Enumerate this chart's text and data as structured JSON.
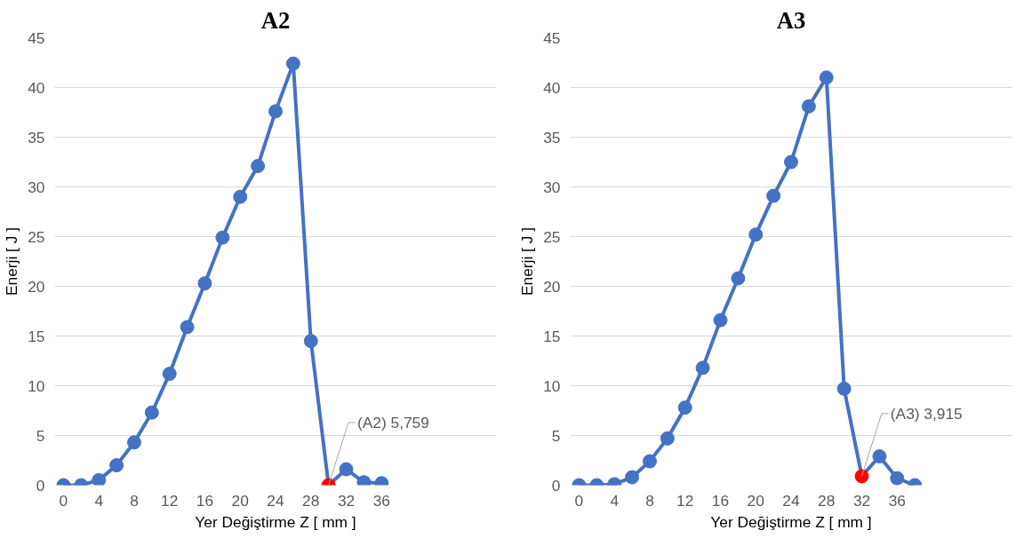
{
  "chart_data": [
    {
      "type": "line",
      "title": "A2",
      "xlabel": "Yer Değiştirme Z [ mm ]",
      "ylabel": "Enerji [ J ]",
      "x": [
        0,
        2,
        4,
        6,
        8,
        10,
        12,
        14,
        16,
        18,
        20,
        22,
        24,
        26,
        28,
        30,
        32,
        34,
        36
      ],
      "series": [
        {
          "color": "#4472c4",
          "colors": [
            "#4472c4",
            "#4472c4",
            "#4472c4",
            "#4472c4",
            "#4472c4",
            "#4472c4",
            "#4472c4",
            "#4472c4",
            "#4472c4",
            "#4472c4",
            "#4472c4",
            "#4472c4",
            "#4472c4",
            "#4472c4",
            "#4472c4",
            "#ff0000",
            "#4472c4",
            "#4472c4",
            "#4472c4"
          ],
          "values": [
            0,
            0,
            0.5,
            2.0,
            4.3,
            7.3,
            11.2,
            15.9,
            20.3,
            24.9,
            29.0,
            32.1,
            37.6,
            42.4,
            14.5,
            0,
            1.6,
            0.3,
            0.2
          ]
        }
      ],
      "xlim": [
        -1,
        49
      ],
      "xticks": [
        0,
        4,
        8,
        12,
        16,
        20,
        24,
        28,
        32,
        36
      ],
      "ylim": [
        0,
        45
      ],
      "yticks": [
        0,
        5,
        10,
        15,
        20,
        25,
        30,
        35,
        40,
        45
      ],
      "grid": "y",
      "marker": "circle",
      "line_style": "solid",
      "annotations": [
        {
          "text": "(A2) 5,759",
          "x": 30,
          "y": 0
        }
      ]
    },
    {
      "type": "line",
      "title": "A3",
      "xlabel": "Yer Değiştirme Z [ mm ]",
      "ylabel": "Enerji [ J ]",
      "x": [
        0,
        2,
        4,
        6,
        8,
        10,
        12,
        14,
        16,
        18,
        20,
        22,
        24,
        26,
        28,
        30,
        32,
        34,
        36,
        38
      ],
      "series": [
        {
          "color": "#4472c4",
          "colors": [
            "#4472c4",
            "#4472c4",
            "#4472c4",
            "#4472c4",
            "#4472c4",
            "#4472c4",
            "#4472c4",
            "#4472c4",
            "#4472c4",
            "#4472c4",
            "#4472c4",
            "#4472c4",
            "#4472c4",
            "#4472c4",
            "#4472c4",
            "#4472c4",
            "#ff0000",
            "#4472c4",
            "#4472c4",
            "#4472c4"
          ],
          "values": [
            0,
            0,
            0.1,
            0.8,
            2.4,
            4.7,
            7.8,
            11.8,
            16.6,
            20.8,
            25.2,
            29.1,
            32.5,
            38.1,
            41.0,
            9.7,
            0.9,
            2.9,
            0.7,
            0
          ]
        }
      ],
      "xlim": [
        -1,
        49
      ],
      "xticks": [
        0,
        4,
        8,
        12,
        16,
        20,
        24,
        28,
        32,
        36
      ],
      "ylim": [
        0,
        45
      ],
      "yticks": [
        0,
        5,
        10,
        15,
        20,
        25,
        30,
        35,
        40,
        45
      ],
      "grid": "y",
      "marker": "circle",
      "line_style": "solid",
      "annotations": [
        {
          "text": "(A3) 3,915",
          "x": 32,
          "y": 0.9
        }
      ]
    }
  ]
}
